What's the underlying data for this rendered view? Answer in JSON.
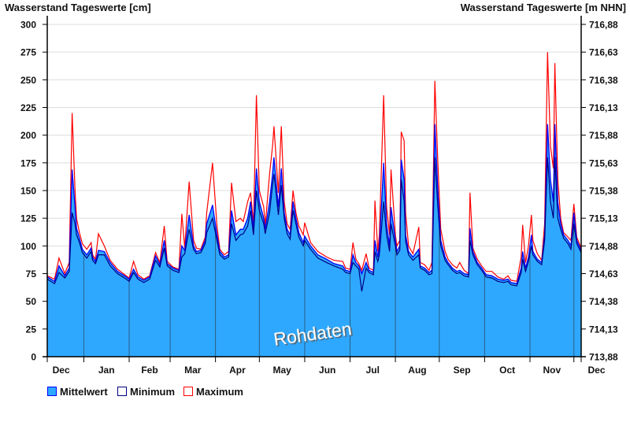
{
  "chart_data": {
    "type": "area",
    "title_left": "Wasserstand Tageswerte [cm]",
    "title_right": "Wasserstand Tageswerte [m NHN]",
    "watermark": "Rohdaten",
    "ylim": [
      0,
      300
    ],
    "yticks": [
      0,
      25,
      50,
      75,
      100,
      125,
      150,
      175,
      200,
      225,
      250,
      275,
      300
    ],
    "yticks_right": [
      "713,88",
      "714,13",
      "714,38",
      "714,63",
      "714,88",
      "715,13",
      "715,38",
      "715,63",
      "715,88",
      "716,13",
      "716,38",
      "716,63",
      "716,88"
    ],
    "xlim_days": [
      0,
      365
    ],
    "months": [
      {
        "label": "Dec",
        "start": -6
      },
      {
        "label": "Jan",
        "start": 25
      },
      {
        "label": "Feb",
        "start": 56
      },
      {
        "label": "Mar",
        "start": 84
      },
      {
        "label": "Apr",
        "start": 115
      },
      {
        "label": "May",
        "start": 145
      },
      {
        "label": "Jun",
        "start": 176
      },
      {
        "label": "Jul",
        "start": 207
      },
      {
        "label": "Aug",
        "start": 238
      },
      {
        "label": "Sep",
        "start": 268
      },
      {
        "label": "Oct",
        "start": 299
      },
      {
        "label": "Nov",
        "start": 330
      },
      {
        "label": "Dec",
        "start": 360
      }
    ],
    "legend": [
      {
        "label": "Mittelwert",
        "color": "#2ea8ff",
        "border": "#0000ff"
      },
      {
        "label": "Minimum",
        "color": "#ffffff",
        "border": "#000080"
      },
      {
        "label": "Maximum",
        "color": "#ffffff",
        "border": "#ff0000"
      }
    ],
    "colors": {
      "area": "#2ea8ff",
      "mean": "#0000ff",
      "min": "#000080",
      "max": "#ff0000",
      "grid": "#dddddd"
    },
    "series_columns": [
      "day",
      "min",
      "mean",
      "max"
    ],
    "series": [
      [
        0,
        70,
        72,
        73
      ],
      [
        5,
        66,
        68,
        70
      ],
      [
        8,
        76,
        82,
        89
      ],
      [
        12,
        71,
        73,
        75
      ],
      [
        15,
        77,
        80,
        85
      ],
      [
        17,
        130,
        169,
        220
      ],
      [
        19,
        120,
        135,
        150
      ],
      [
        20,
        110,
        116,
        125
      ],
      [
        22,
        103,
        107,
        112
      ],
      [
        24,
        94,
        97,
        102
      ],
      [
        27,
        89,
        92,
        97
      ],
      [
        30,
        95,
        98,
        103
      ],
      [
        31,
        87,
        90,
        92
      ],
      [
        33,
        84,
        86,
        88
      ],
      [
        35,
        92,
        96,
        111
      ],
      [
        39,
        92,
        95,
        100
      ],
      [
        43,
        82,
        85,
        87
      ],
      [
        48,
        75,
        77,
        79
      ],
      [
        54,
        70,
        72,
        73
      ],
      [
        56,
        68,
        70,
        71
      ],
      [
        59,
        76,
        79,
        86
      ],
      [
        62,
        70,
        72,
        74
      ],
      [
        66,
        67,
        69,
        70
      ],
      [
        70,
        70,
        72,
        73
      ],
      [
        74,
        87,
        91,
        94
      ],
      [
        77,
        81,
        83,
        85
      ],
      [
        80,
        98,
        105,
        118
      ],
      [
        82,
        82,
        84,
        86
      ],
      [
        86,
        78,
        80,
        81
      ],
      [
        90,
        76,
        78,
        79
      ],
      [
        92,
        90,
        100,
        129
      ],
      [
        94,
        93,
        96,
        98
      ],
      [
        97,
        115,
        128,
        158
      ],
      [
        100,
        97,
        100,
        105
      ],
      [
        102,
        93,
        95,
        98
      ],
      [
        105,
        94,
        96,
        97
      ],
      [
        108,
        102,
        105,
        108
      ],
      [
        109,
        112,
        120,
        130
      ],
      [
        113,
        125,
        137,
        175
      ],
      [
        116,
        105,
        110,
        118
      ],
      [
        118,
        92,
        95,
        97
      ],
      [
        121,
        88,
        90,
        92
      ],
      [
        124,
        90,
        92,
        95
      ],
      [
        126,
        120,
        132,
        157
      ],
      [
        129,
        105,
        110,
        122
      ],
      [
        132,
        110,
        115,
        125
      ],
      [
        134,
        111,
        115,
        122
      ],
      [
        137,
        118,
        125,
        140
      ],
      [
        139,
        132,
        140,
        148
      ],
      [
        141,
        110,
        115,
        120
      ],
      [
        143,
        150,
        170,
        236
      ],
      [
        145,
        132,
        140,
        150
      ],
      [
        148,
        120,
        125,
        135
      ],
      [
        149,
        111,
        115,
        118
      ],
      [
        152,
        130,
        140,
        165
      ],
      [
        154,
        155,
        165,
        190
      ],
      [
        155,
        165,
        180,
        208
      ],
      [
        158,
        128,
        135,
        148
      ],
      [
        160,
        155,
        170,
        208
      ],
      [
        162,
        125,
        130,
        140
      ],
      [
        164,
        111,
        115,
        120
      ],
      [
        166,
        106,
        110,
        115
      ],
      [
        168,
        132,
        140,
        150
      ],
      [
        170,
        120,
        125,
        130
      ],
      [
        172,
        108,
        112,
        118
      ],
      [
        175,
        100,
        103,
        110
      ],
      [
        176,
        105,
        109,
        121
      ],
      [
        180,
        97,
        100,
        103
      ],
      [
        185,
        89,
        92,
        95
      ],
      [
        191,
        85,
        88,
        90
      ],
      [
        196,
        82,
        84,
        87
      ],
      [
        202,
        79,
        82,
        86
      ],
      [
        204,
        76,
        78,
        80
      ],
      [
        207,
        75,
        77,
        79
      ],
      [
        209,
        85,
        92,
        103
      ],
      [
        211,
        82,
        85,
        88
      ],
      [
        213,
        79,
        82,
        84
      ],
      [
        215,
        59,
        75,
        78
      ],
      [
        218,
        80,
        85,
        93
      ],
      [
        220,
        76,
        78,
        80
      ],
      [
        223,
        74,
        76,
        78
      ],
      [
        224,
        95,
        105,
        141
      ],
      [
        226,
        86,
        90,
        95
      ],
      [
        227,
        92,
        100,
        110
      ],
      [
        230,
        140,
        175,
        236
      ],
      [
        232,
        110,
        120,
        135
      ],
      [
        234,
        95,
        100,
        110
      ],
      [
        235,
        120,
        135,
        169
      ],
      [
        238,
        100,
        105,
        110
      ],
      [
        239,
        92,
        95,
        100
      ],
      [
        241,
        96,
        100,
        105
      ],
      [
        242,
        160,
        178,
        203
      ],
      [
        244,
        140,
        160,
        195
      ],
      [
        245,
        104,
        110,
        130
      ],
      [
        247,
        92,
        95,
        100
      ],
      [
        250,
        87,
        90,
        93
      ],
      [
        254,
        92,
        97,
        117
      ],
      [
        255,
        80,
        82,
        85
      ],
      [
        258,
        78,
        80,
        83
      ],
      [
        261,
        74,
        76,
        78
      ],
      [
        263,
        75,
        78,
        85
      ],
      [
        265,
        180,
        210,
        249
      ],
      [
        267,
        135,
        150,
        175
      ],
      [
        269,
        100,
        105,
        115
      ],
      [
        272,
        87,
        90,
        95
      ],
      [
        274,
        83,
        85,
        88
      ],
      [
        277,
        78,
        80,
        83
      ],
      [
        280,
        75,
        77,
        80
      ],
      [
        282,
        76,
        78,
        85
      ],
      [
        285,
        73,
        75,
        78
      ],
      [
        288,
        72,
        74,
        75
      ],
      [
        289,
        105,
        116,
        148
      ],
      [
        291,
        92,
        95,
        98
      ],
      [
        294,
        83,
        85,
        88
      ],
      [
        297,
        78,
        80,
        82
      ],
      [
        300,
        72,
        74,
        77
      ],
      [
        304,
        71,
        73,
        77
      ],
      [
        308,
        68,
        70,
        72
      ],
      [
        312,
        67,
        69,
        70
      ],
      [
        315,
        68,
        70,
        73
      ],
      [
        317,
        65,
        67,
        69
      ],
      [
        321,
        64,
        66,
        68
      ],
      [
        324,
        76,
        80,
        90
      ],
      [
        325,
        88,
        95,
        119
      ],
      [
        327,
        77,
        80,
        85
      ],
      [
        329,
        86,
        90,
        100
      ],
      [
        331,
        100,
        110,
        128
      ],
      [
        332,
        92,
        95,
        105
      ],
      [
        335,
        86,
        88,
        93
      ],
      [
        338,
        83,
        85,
        87
      ],
      [
        340,
        105,
        110,
        120
      ],
      [
        342,
        180,
        210,
        275
      ],
      [
        344,
        140,
        160,
        190
      ],
      [
        346,
        125,
        140,
        170
      ],
      [
        347,
        180,
        210,
        265
      ],
      [
        349,
        125,
        140,
        160
      ],
      [
        351,
        115,
        120,
        125
      ],
      [
        353,
        107,
        110,
        112
      ],
      [
        356,
        102,
        105,
        108
      ],
      [
        358,
        97,
        100,
        105
      ],
      [
        360,
        120,
        130,
        138
      ],
      [
        362,
        102,
        105,
        108
      ],
      [
        365,
        94,
        96,
        98
      ]
    ]
  }
}
